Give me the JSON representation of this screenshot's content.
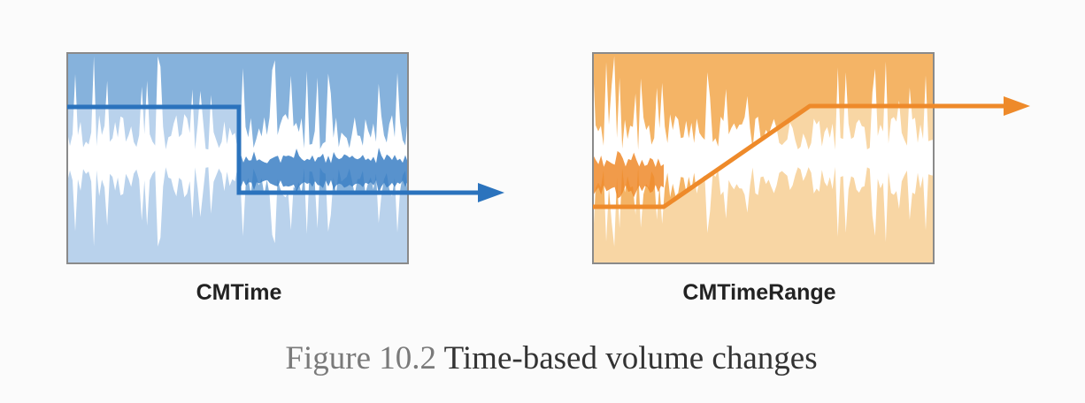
{
  "figure": {
    "number": "Figure 10.2",
    "caption": "Time-based volume changes"
  },
  "panels": [
    {
      "label": "CMTime",
      "ramp": "step",
      "colors": {
        "bg": "#b9d2ec",
        "top": "#86b2dc",
        "line": "#2b73bd",
        "wave": "#ffffff",
        "wave_dark": "#3b7fc4"
      }
    },
    {
      "label": "CMTimeRange",
      "ramp": "linear",
      "colors": {
        "bg": "#f8d6a4",
        "top": "#f4b466",
        "line": "#ee8a2a",
        "wave": "#ffffff",
        "wave_dark": "#ee8a2a"
      }
    }
  ]
}
